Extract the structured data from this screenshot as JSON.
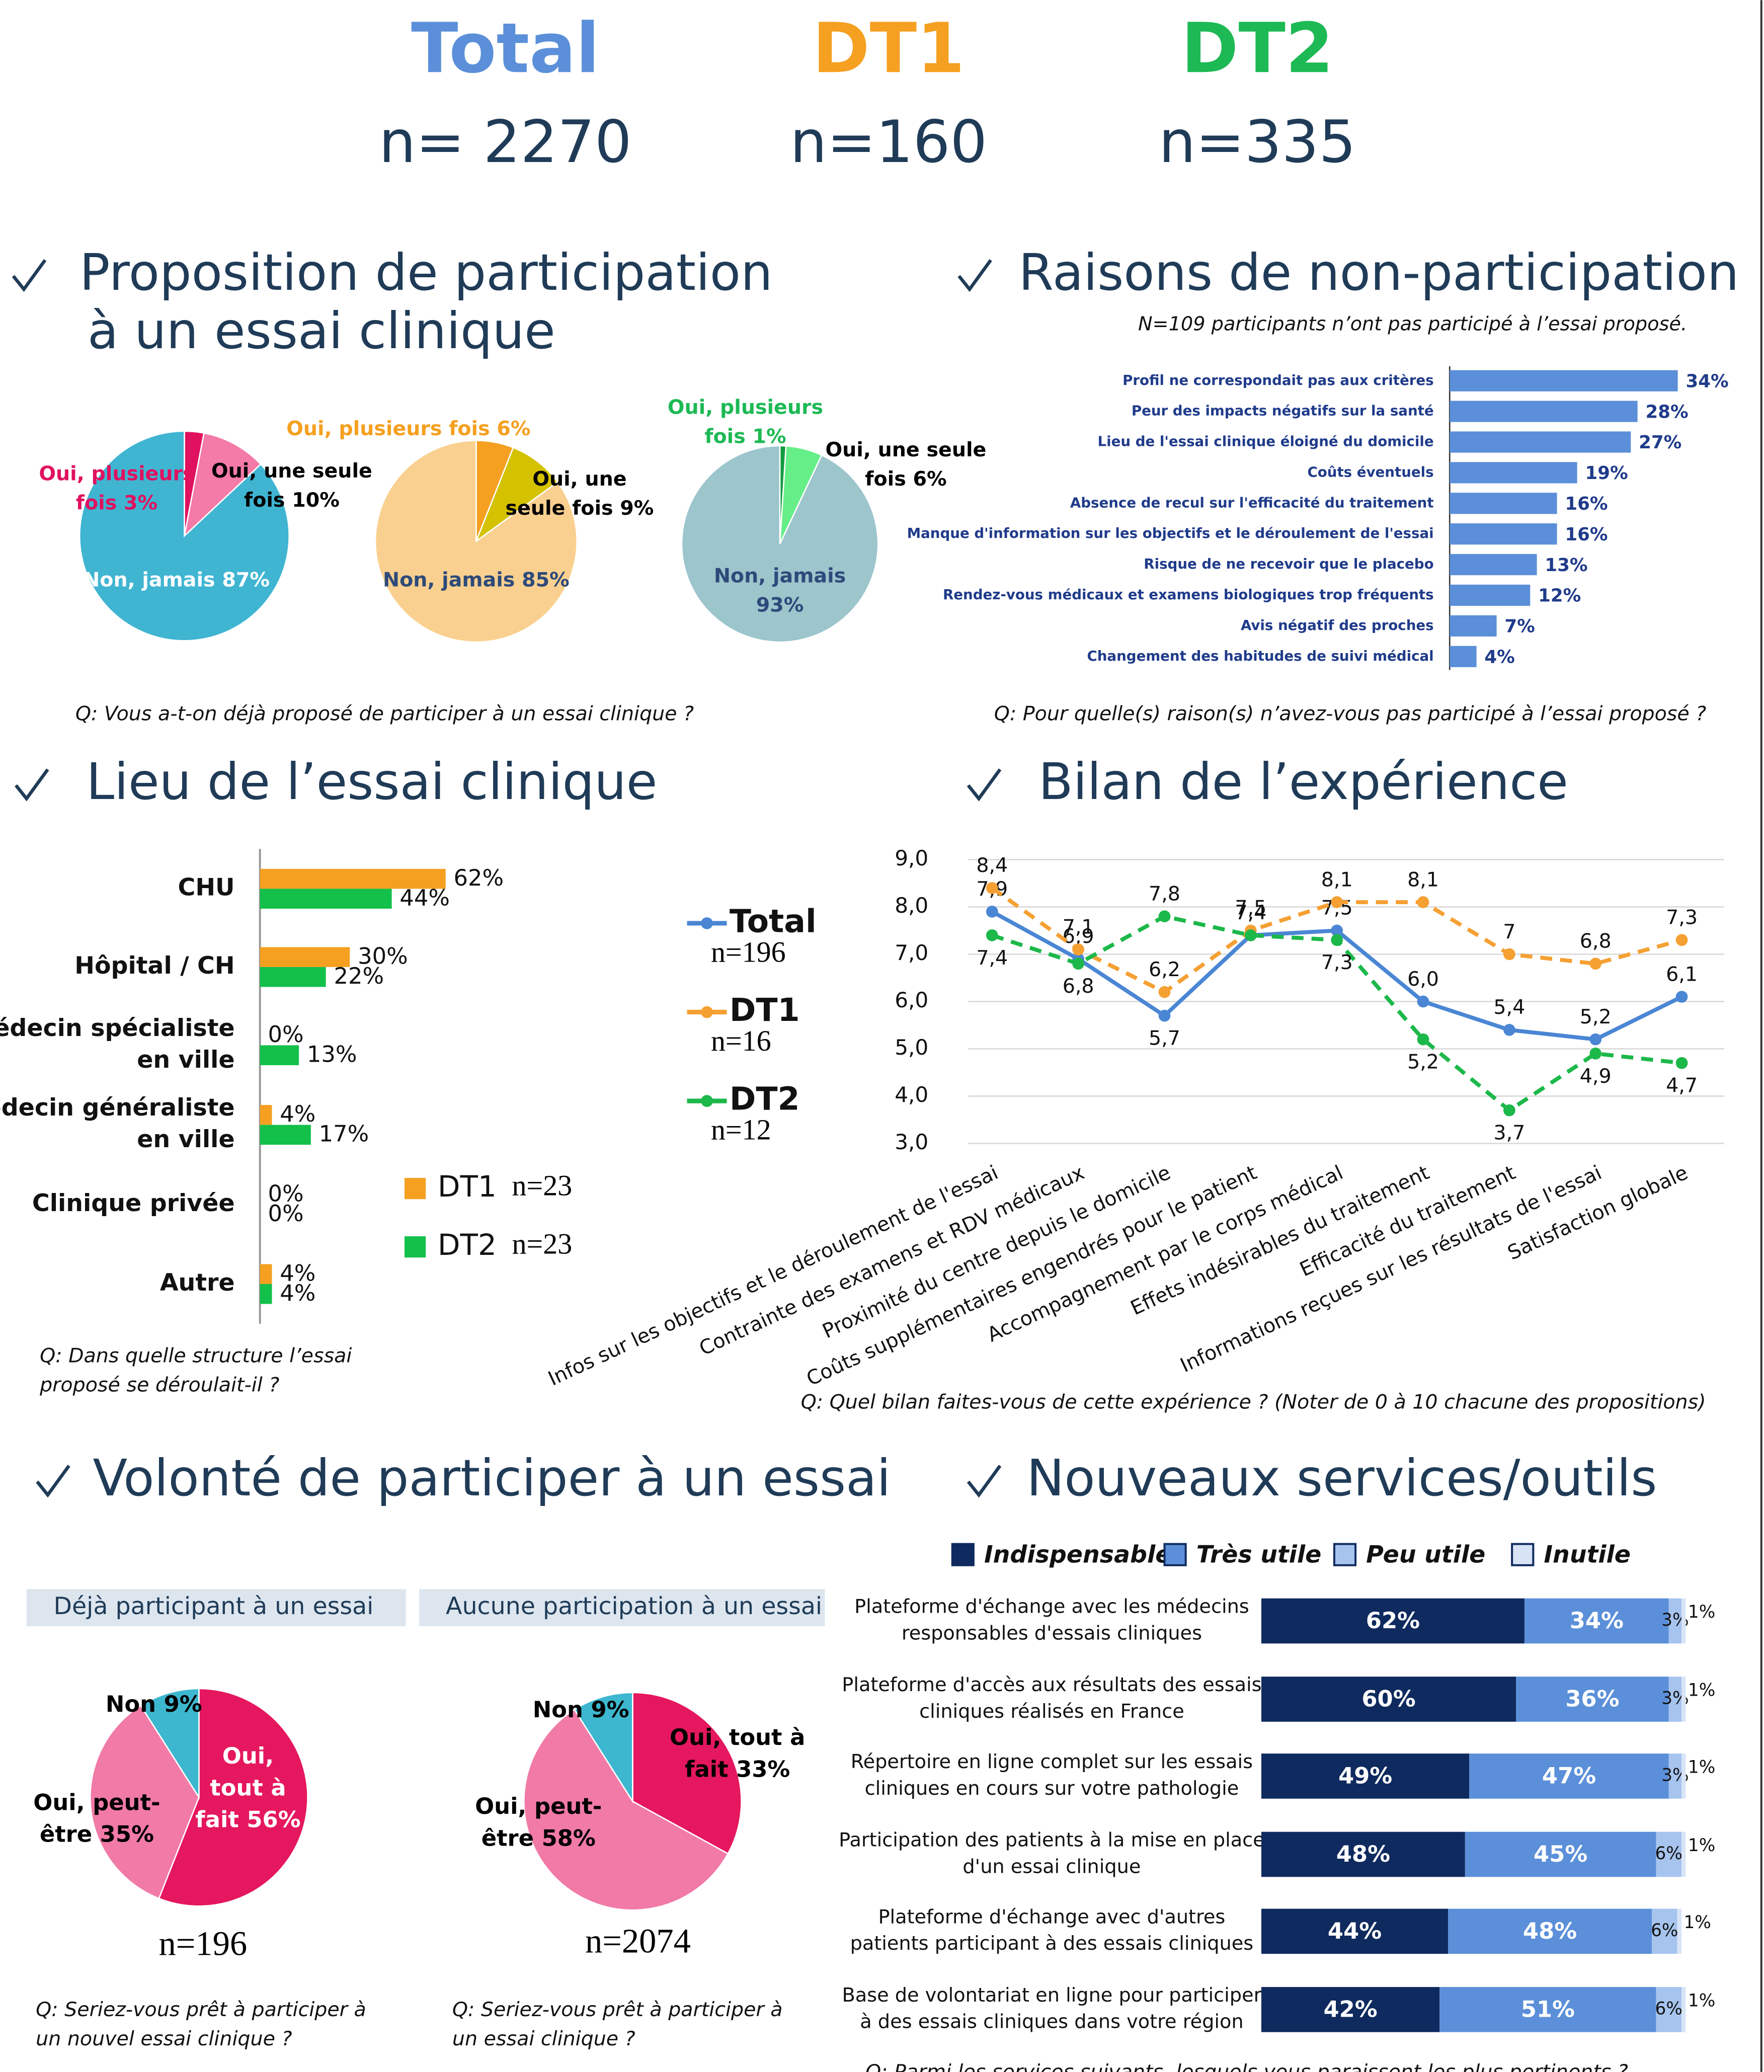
{
  "header": {
    "groups": [
      {
        "name": "Total",
        "n": "n= 2270",
        "color": "#5b8fd9"
      },
      {
        "name": "DT1",
        "n": "n=160",
        "color": "#f5a020"
      },
      {
        "name": "DT2",
        "n": "n=335",
        "color": "#1db954"
      }
    ]
  },
  "chart_data": [
    {
      "type": "pie",
      "title": [
        "Proposition de participation",
        "à un essai clinique"
      ],
      "question": "Q: Vous a-t-on déjà proposé de participer à un essai clinique ?",
      "pies": [
        {
          "values": [
            3,
            10,
            87
          ],
          "colors": [
            "#e0115f",
            "#f47aa8",
            "#3fb5d2"
          ],
          "value_labels": [
            [
              "Oui, plusieurs",
              "fois 3%"
            ],
            [
              "Oui, une seule",
              "fois 10%"
            ],
            [
              "Non, jamais 87%"
            ]
          ],
          "label_colors": [
            "#e0115f",
            "#000000",
            "#ffffff"
          ]
        },
        {
          "values": [
            6,
            9,
            85
          ],
          "colors": [
            "#f5a020",
            "#d4c200",
            "#f9d08f"
          ],
          "value_labels": [
            [
              "Oui, plusieurs fois 6%"
            ],
            [
              "Oui, une",
              "seule fois 9%"
            ],
            [
              "Non, jamais 85%"
            ]
          ],
          "label_colors": [
            "#f5a020",
            "#000000",
            "#2e4a7a"
          ]
        },
        {
          "values": [
            1,
            6,
            93
          ],
          "colors": [
            "#139a40",
            "#66ee88",
            "#9cc5cc"
          ],
          "value_labels": [
            [
              "Oui, plusieurs",
              "fois 1%"
            ],
            [
              "Oui, une seule",
              "fois 6%"
            ],
            [
              "Non, jamais",
              "93%"
            ]
          ],
          "label_colors": [
            "#1db954",
            "#000000",
            "#2e4a7a"
          ]
        }
      ]
    },
    {
      "type": "barh",
      "title": "Raisons de non-participation",
      "subtitle": "N=109 participants n’ont pas participé à l’essai proposé.",
      "question": "Q: Pour quelle(s) raison(s) n’avez-vous pas participé à l’essai proposé ?",
      "categories": [
        "Profil ne correspondait pas aux critères",
        "Peur des impacts négatifs sur la santé",
        "Lieu de l'essai clinique éloigné du domicile",
        "Coûts éventuels",
        "Absence de recul sur l'efficacité du traitement",
        "Manque d'information sur les objectifs et le déroulement de l'essai",
        "Risque de ne recevoir que le placebo",
        "Rendez-vous médicaux et examens biologiques trop fréquents",
        "Avis négatif des proches",
        "Changement des habitudes de suivi médical"
      ],
      "values": [
        34,
        28,
        27,
        19,
        16,
        16,
        13,
        12,
        7,
        4
      ],
      "value_labels": [
        "34%",
        "28%",
        "27%",
        "19%",
        "16%",
        "16%",
        "13%",
        "12%",
        "7%",
        "4%"
      ],
      "color": "#5b8fd9",
      "xlim": [
        0,
        34
      ]
    },
    {
      "type": "barh_grouped",
      "title": "Lieu de l’essai clinique",
      "question": [
        "Q: Dans quelle structure l’essai",
        "proposé se déroulait-il ?"
      ],
      "categories": [
        [
          "CHU"
        ],
        [
          "Hôpital / CH"
        ],
        [
          "Médecin spécialiste",
          "en ville"
        ],
        [
          "Médecin généraliste",
          "en ville"
        ],
        [
          "Clinique privée"
        ],
        [
          "Autre"
        ]
      ],
      "series": [
        {
          "name": "DT1",
          "n": "n=23",
          "color": "#f5a020",
          "values": [
            62,
            30,
            0,
            4,
            0,
            4
          ],
          "value_labels": [
            "62%",
            "30%",
            "0%",
            "4%",
            "0%",
            "4%"
          ]
        },
        {
          "name": "DT2",
          "n": "n=23",
          "color": "#12c04a",
          "values": [
            44,
            22,
            13,
            17,
            0,
            4
          ],
          "value_labels": [
            "44%",
            "22%",
            "13%",
            "17%",
            "0%",
            "4%"
          ]
        }
      ],
      "xlim": [
        0,
        62
      ]
    },
    {
      "type": "line",
      "title": "Bilan de l’expérience",
      "question": "Q: Quel bilan faites-vous de cette expérience ? (Noter de 0 à 10 chacune des propositions)",
      "categories": [
        "Infos sur les objectifs et le déroulement de l'essai",
        "Contrainte des examens et RDV médicaux",
        "Proximité du centre depuis le domicile",
        "Coûts supplémentaires engendrés pour le patient",
        "Accompagnement par le corps médical",
        "Effets indésirables du traitement",
        "Efficacité du traitement",
        "Informations reçues sur les résultats de l'essai",
        "Satisfaction globale"
      ],
      "series": [
        {
          "name": "Total",
          "n": "n=196",
          "color": "#4a86d4",
          "dashed": false,
          "values": [
            7.9,
            6.9,
            5.7,
            7.4,
            7.5,
            6.0,
            5.4,
            5.2,
            6.1
          ],
          "value_labels": [
            "7,9",
            "6,9",
            "5,7",
            "7,4",
            "7,5",
            "6,0",
            "5,4",
            "5,2",
            "6,1"
          ]
        },
        {
          "name": "DT1",
          "n": "n=16",
          "color": "#f5a033",
          "dashed": true,
          "values": [
            8.4,
            7.1,
            6.2,
            7.5,
            8.1,
            8.1,
            7,
            6.8,
            7.3
          ],
          "value_labels": [
            "8,4",
            "7,1",
            "6,2",
            "7,5",
            "8,1",
            "8,1",
            "7",
            "6,8",
            "7,3"
          ]
        },
        {
          "name": "DT2",
          "n": "n=12",
          "color": "#1cb84a",
          "dashed": true,
          "values": [
            7.4,
            6.8,
            7.8,
            7.4,
            7.3,
            5.2,
            3.7,
            4.9,
            4.7
          ],
          "value_labels": [
            "7,4",
            "6,8",
            "7,8",
            "7,4",
            "7,3",
            "5,2",
            "3,7",
            "4,9",
            "4,7"
          ]
        }
      ],
      "ylim": [
        3,
        9
      ],
      "yticks": [
        {
          "value": 3,
          "label": "3,0"
        },
        {
          "value": 4,
          "label": "4,0"
        },
        {
          "value": 5,
          "label": "5,0"
        },
        {
          "value": 6,
          "label": "6,0"
        },
        {
          "value": 7,
          "label": "7,0"
        },
        {
          "value": 8,
          "label": "8,0"
        },
        {
          "value": 9,
          "label": "9,0"
        }
      ],
      "grid": true
    },
    {
      "type": "pie",
      "title": [
        "Volonté de participer à un essai"
      ],
      "pies": [
        {
          "heading": "Déjà participant à un essai",
          "n": "n=196",
          "question": [
            "Q: Seriez-vous prêt à participer à",
            "un nouvel essai clinique ?"
          ],
          "values": [
            56,
            35,
            9
          ],
          "colors": [
            "#e5175e",
            "#f17aa6",
            "#3db7cf"
          ],
          "value_labels": [
            [
              "Oui,",
              "tout à",
              "fait 56%"
            ],
            [
              "Oui, peut-",
              "être 35%"
            ],
            [
              "Non 9%"
            ]
          ],
          "label_colors": [
            "#ffffff",
            "#000000",
            "#000000"
          ]
        },
        {
          "heading": "Aucune participation à un essai",
          "n": "n=2074",
          "question": [
            "Q: Seriez-vous prêt à participer à",
            "un essai clinique ?"
          ],
          "values": [
            33,
            58,
            9
          ],
          "colors": [
            "#e5175e",
            "#f17aa6",
            "#3db7cf"
          ],
          "value_labels": [
            [
              "Oui, tout à",
              "fait 33%"
            ],
            [
              "Oui, peut-",
              "être 58%"
            ],
            [
              "Non 9%"
            ]
          ],
          "label_colors": [
            "#000000",
            "#000000",
            "#000000"
          ]
        }
      ]
    },
    {
      "type": "barh_stacked",
      "title": "Nouveaux services/outils",
      "question": "Q: Parmi les services suivants, lesquels vous paraissent les plus pertinents ?",
      "categories": [
        [
          "Plateforme d'échange avec les médecins",
          "responsables d'essais cliniques"
        ],
        [
          "Plateforme d'accès aux résultats des essais",
          "cliniques réalisés en France"
        ],
        [
          "Répertoire en ligne complet sur les essais",
          "cliniques en cours sur votre pathologie"
        ],
        [
          "Participation des patients à la mise en place",
          "d'un essai clinique"
        ],
        [
          "Plateforme d'échange avec d'autres",
          "patients participant à des essais cliniques"
        ],
        [
          "Base de volontariat en ligne pour participer",
          "à des essais cliniques dans votre région"
        ]
      ],
      "series": [
        {
          "name": "Indispensable",
          "color": "#0f2a5e",
          "values": [
            62,
            60,
            49,
            48,
            44,
            42
          ],
          "value_labels": [
            "62%",
            "60%",
            "49%",
            "48%",
            "44%",
            "42%"
          ]
        },
        {
          "name": "Très utile",
          "color": "#5b8fd9",
          "values": [
            34,
            36,
            47,
            45,
            48,
            51
          ],
          "value_labels": [
            "34%",
            "36%",
            "47%",
            "45%",
            "48%",
            "51%"
          ]
        },
        {
          "name": "Peu utile",
          "color": "#a6c4ee",
          "values": [
            3,
            3,
            3,
            6,
            6,
            6
          ],
          "value_labels": [
            "3%",
            "3%",
            "3%",
            "6%",
            "6%",
            "6%"
          ]
        },
        {
          "name": "Inutile",
          "color": "#d8e4f6",
          "values": [
            1,
            1,
            1,
            1,
            1,
            1
          ],
          "value_labels": [
            "1%",
            "1%",
            "1%",
            "1%",
            "1%",
            "1%"
          ]
        }
      ],
      "xlim": [
        0,
        100
      ]
    }
  ]
}
